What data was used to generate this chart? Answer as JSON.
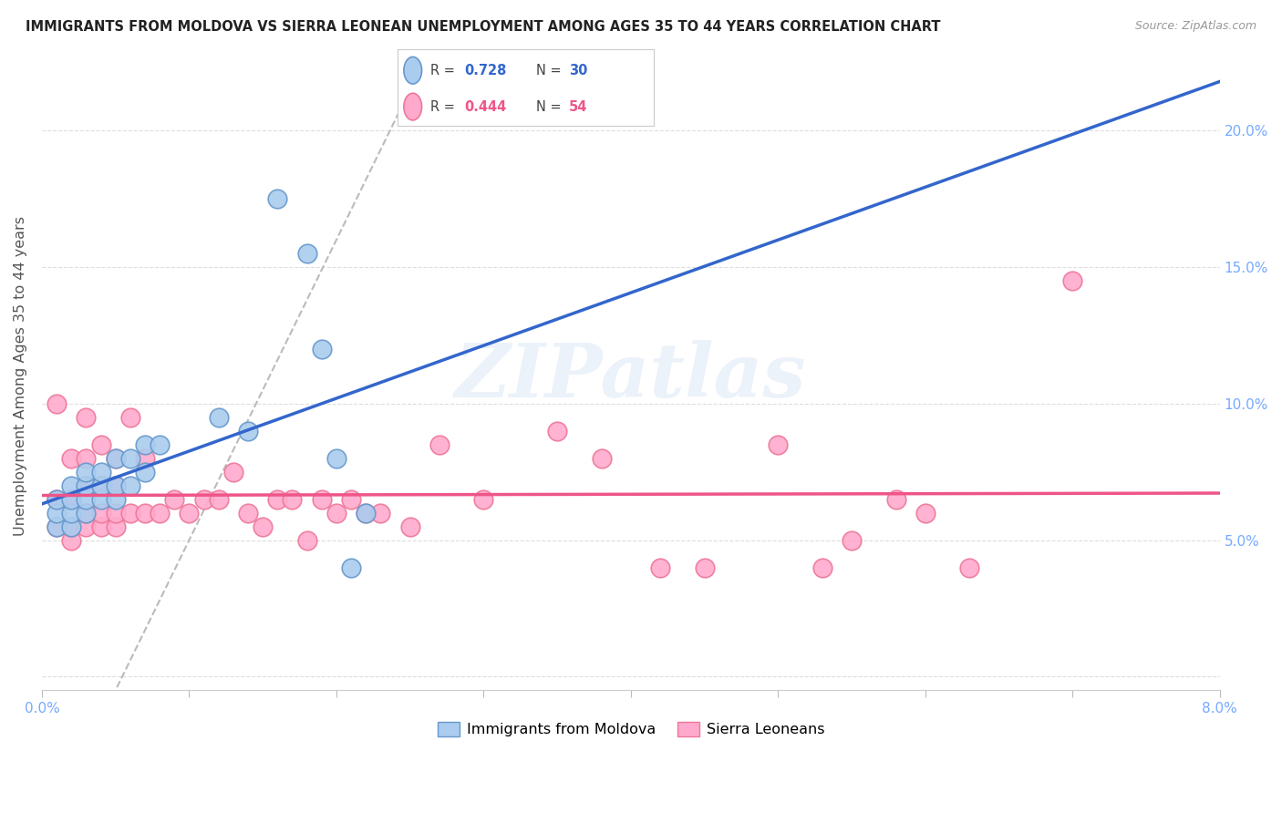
{
  "title": "IMMIGRANTS FROM MOLDOVA VS SIERRA LEONEAN UNEMPLOYMENT AMONG AGES 35 TO 44 YEARS CORRELATION CHART",
  "source": "Source: ZipAtlas.com",
  "ylabel": "Unemployment Among Ages 35 to 44 years",
  "xlim": [
    0.0,
    0.08
  ],
  "ylim": [
    -0.005,
    0.225
  ],
  "xticks": [
    0.0,
    0.01,
    0.02,
    0.03,
    0.04,
    0.05,
    0.06,
    0.07,
    0.08
  ],
  "xticklabels_show": [
    "0.0%",
    "",
    "",
    "",
    "",
    "",
    "",
    "",
    "8.0%"
  ],
  "yticks": [
    0.0,
    0.05,
    0.1,
    0.15,
    0.2
  ],
  "yticklabels_right": [
    "",
    "5.0%",
    "10.0%",
    "15.0%",
    "20.0%"
  ],
  "moldova_color": "#AACCEE",
  "moldova_edge": "#6699CC",
  "sierra_color": "#FFAACC",
  "sierra_edge": "#EE7799",
  "moldova_R": 0.728,
  "moldova_N": 30,
  "sierra_R": 0.444,
  "sierra_N": 54,
  "moldova_line_color": "#3366CC",
  "sierra_line_color": "#EE5588",
  "diag_line_color": "#BBBBBB",
  "background": "#FFFFFF",
  "grid_color": "#DDDDDD",
  "tick_color": "#AAAAAA",
  "label_color": "#77AAFF",
  "moldova_x": [
    0.001,
    0.001,
    0.001,
    0.002,
    0.002,
    0.002,
    0.002,
    0.003,
    0.003,
    0.003,
    0.003,
    0.004,
    0.004,
    0.004,
    0.005,
    0.005,
    0.005,
    0.006,
    0.006,
    0.007,
    0.007,
    0.008,
    0.012,
    0.014,
    0.016,
    0.018,
    0.019,
    0.02,
    0.021,
    0.022
  ],
  "moldova_y": [
    0.055,
    0.06,
    0.065,
    0.055,
    0.06,
    0.065,
    0.07,
    0.06,
    0.065,
    0.07,
    0.075,
    0.065,
    0.07,
    0.075,
    0.065,
    0.07,
    0.08,
    0.07,
    0.08,
    0.075,
    0.085,
    0.085,
    0.095,
    0.09,
    0.175,
    0.155,
    0.12,
    0.08,
    0.04,
    0.06
  ],
  "sierra_x": [
    0.001,
    0.001,
    0.001,
    0.002,
    0.002,
    0.002,
    0.002,
    0.003,
    0.003,
    0.003,
    0.003,
    0.003,
    0.004,
    0.004,
    0.004,
    0.004,
    0.005,
    0.005,
    0.005,
    0.005,
    0.006,
    0.006,
    0.007,
    0.007,
    0.008,
    0.009,
    0.01,
    0.011,
    0.012,
    0.013,
    0.014,
    0.015,
    0.016,
    0.017,
    0.018,
    0.019,
    0.02,
    0.021,
    0.022,
    0.023,
    0.025,
    0.027,
    0.03,
    0.035,
    0.038,
    0.042,
    0.045,
    0.05,
    0.053,
    0.055,
    0.058,
    0.06,
    0.063,
    0.07
  ],
  "sierra_y": [
    0.055,
    0.065,
    0.1,
    0.05,
    0.055,
    0.065,
    0.08,
    0.055,
    0.06,
    0.07,
    0.08,
    0.095,
    0.055,
    0.06,
    0.07,
    0.085,
    0.055,
    0.06,
    0.07,
    0.08,
    0.06,
    0.095,
    0.06,
    0.08,
    0.06,
    0.065,
    0.06,
    0.065,
    0.065,
    0.075,
    0.06,
    0.055,
    0.065,
    0.065,
    0.05,
    0.065,
    0.06,
    0.065,
    0.06,
    0.06,
    0.055,
    0.085,
    0.065,
    0.09,
    0.08,
    0.04,
    0.04,
    0.085,
    0.04,
    0.05,
    0.065,
    0.06,
    0.04,
    0.145
  ],
  "watermark_text": "ZIPatlas",
  "legend_items": [
    "Immigrants from Moldova",
    "Sierra Leoneans"
  ]
}
